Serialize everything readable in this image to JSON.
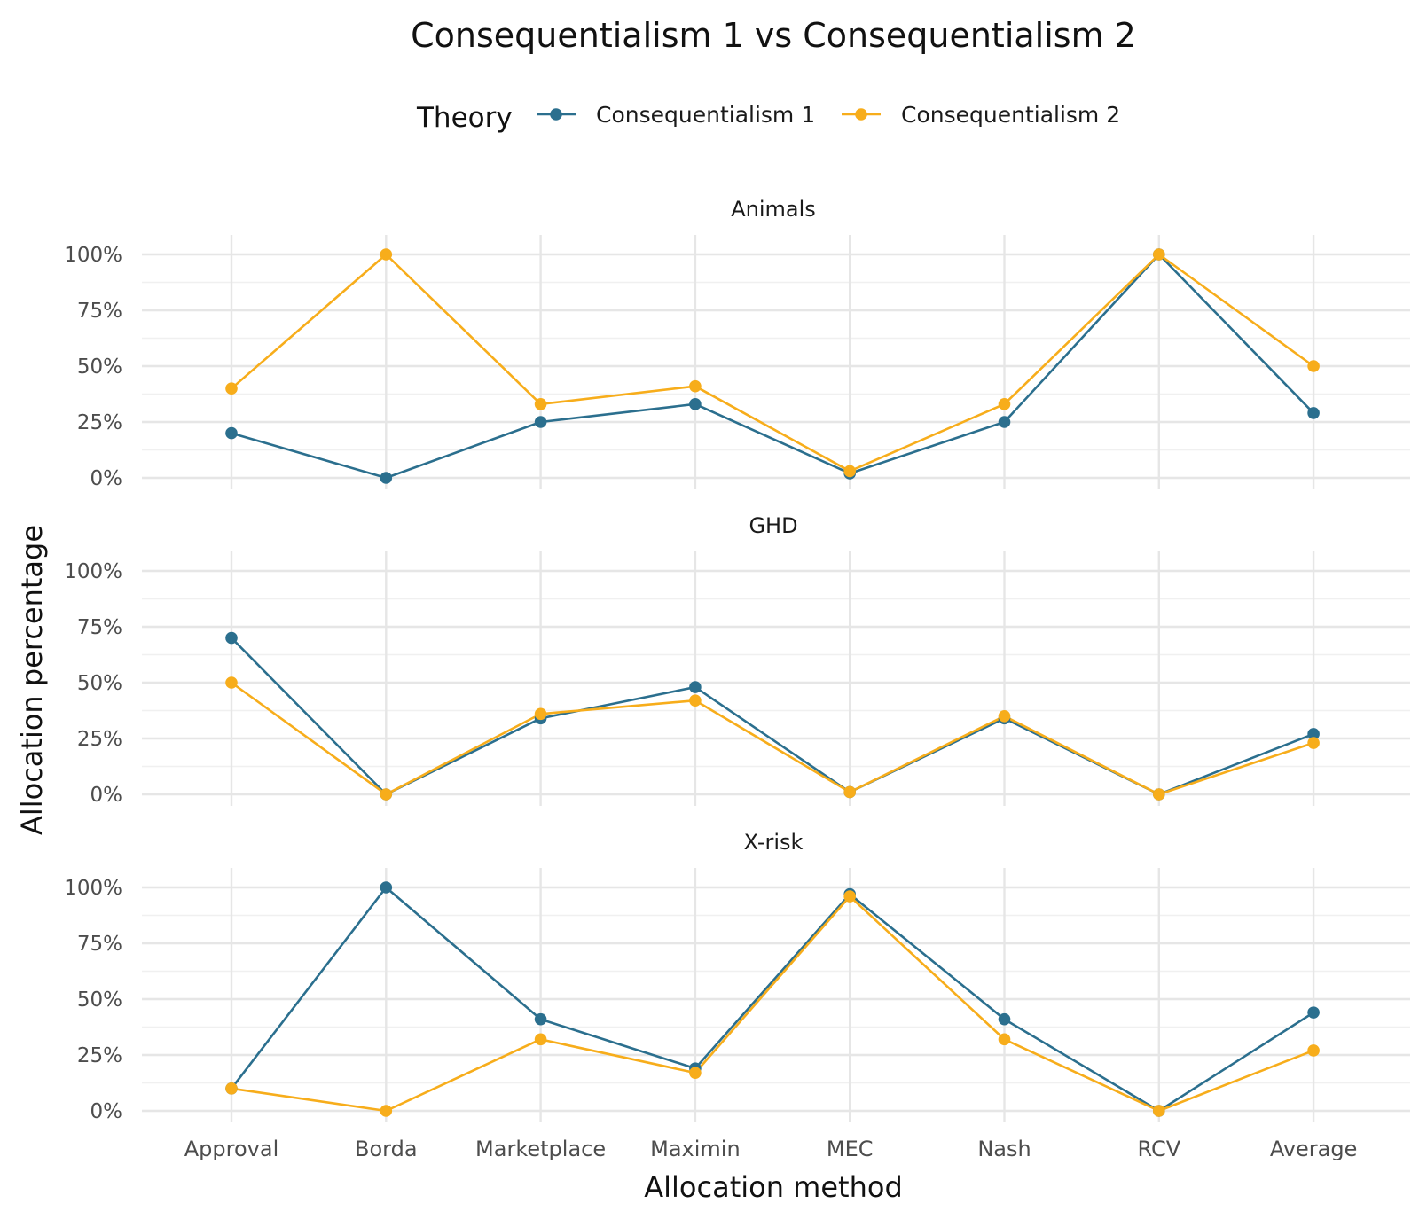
{
  "chart_data": {
    "type": "line",
    "title": "Consequentialism 1 vs Consequentialism 2",
    "legend": {
      "title": "Theory",
      "position": "top",
      "entries": [
        {
          "name": "Consequentialism 1",
          "color": "#2b6f8e"
        },
        {
          "name": "Consequentialism 2",
          "color": "#f7ad1b"
        }
      ]
    },
    "xlabel": "Allocation method",
    "ylabel": "Allocation percentage",
    "categories": [
      "Approval",
      "Borda",
      "Marketplace",
      "Maximin",
      "MEC",
      "Nash",
      "RCV",
      "Average"
    ],
    "ylim": [
      0,
      100
    ],
    "yticks": [
      0,
      25,
      50,
      75,
      100
    ],
    "ytick_labels": [
      "0%",
      "25%",
      "50%",
      "75%",
      "100%"
    ],
    "grid": true,
    "facets": [
      {
        "label": "Animals",
        "series": [
          {
            "name": "Consequentialism 1",
            "values": [
              20,
              0,
              25,
              33,
              2,
              25,
              100,
              29
            ]
          },
          {
            "name": "Consequentialism 2",
            "values": [
              40,
              100,
              33,
              41,
              3,
              33,
              100,
              50
            ]
          }
        ]
      },
      {
        "label": "GHD",
        "series": [
          {
            "name": "Consequentialism 1",
            "values": [
              70,
              0,
              34,
              48,
              1,
              34,
              0,
              27
            ]
          },
          {
            "name": "Consequentialism 2",
            "values": [
              50,
              0,
              36,
              42,
              1,
              35,
              0,
              23
            ]
          }
        ]
      },
      {
        "label": "X-risk",
        "series": [
          {
            "name": "Consequentialism 1",
            "values": [
              10,
              100,
              41,
              19,
              97,
              41,
              0,
              44
            ]
          },
          {
            "name": "Consequentialism 2",
            "values": [
              10,
              0,
              32,
              17,
              96,
              32,
              0,
              27
            ]
          }
        ]
      }
    ]
  }
}
